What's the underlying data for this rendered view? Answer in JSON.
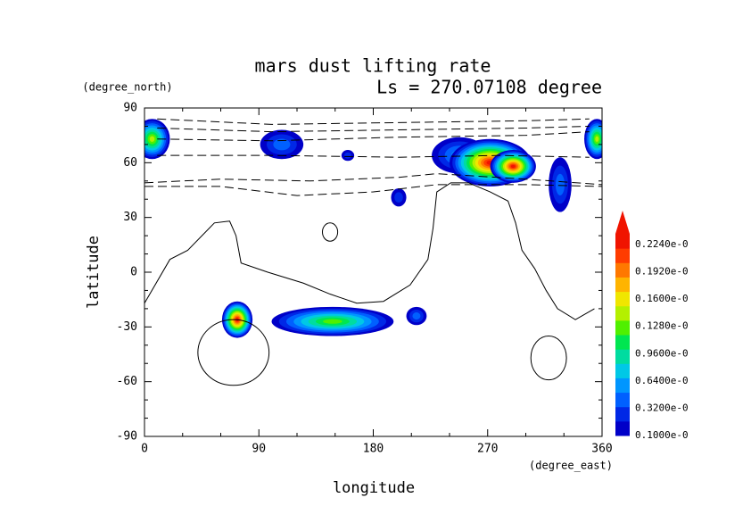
{
  "chart_data": {
    "type": "contour",
    "title": "mars dust lifting rate",
    "subtitle": "Ls = 270.07108 degree",
    "y_unit": "(degree_north)",
    "x_unit": "(degree_east)",
    "xlabel": "longitude",
    "ylabel": "latitude",
    "xlim": [
      0,
      360
    ],
    "ylim": [
      -90,
      90
    ],
    "xticks": [
      0,
      90,
      180,
      270,
      360
    ],
    "yticks": [
      -90,
      -60,
      -30,
      0,
      30,
      60,
      90
    ],
    "colorbar_labels": [
      "0.1000e-0",
      "0.3200e-0",
      "0.6400e-0",
      "0.9600e-0",
      "0.1280e-0",
      "0.1600e-0",
      "0.1920e-0",
      "0.2240e-0"
    ],
    "colors": [
      "#0000c8",
      "#0028e6",
      "#0060ff",
      "#0096ff",
      "#00c8e6",
      "#00dca0",
      "#00e650",
      "#50f000",
      "#b4f000",
      "#f0e600",
      "#ffb400",
      "#ff7800",
      "#ff3c00",
      "#f01400"
    ],
    "patches": [
      {
        "lon": 6,
        "lat": 73,
        "rlon": 14,
        "rlat": 11,
        "peak": 8
      },
      {
        "lon": 356,
        "lat": 73,
        "rlon": 10,
        "rlat": 11,
        "peak": 8
      },
      {
        "lon": 108,
        "lat": 70,
        "rlon": 17,
        "rlat": 8,
        "peak": 2
      },
      {
        "lon": 160,
        "lat": 64,
        "rlon": 5,
        "rlat": 3,
        "peak": 1
      },
      {
        "lon": 248,
        "lat": 64,
        "rlon": 22,
        "rlat": 10,
        "peak": 3
      },
      {
        "lon": 272,
        "lat": 60,
        "rlon": 32,
        "rlat": 13,
        "peak": 13
      },
      {
        "lon": 290,
        "lat": 58,
        "rlon": 18,
        "rlat": 9,
        "peak": 13
      },
      {
        "lon": 327,
        "lat": 48,
        "rlon": 9,
        "rlat": 15,
        "peak": 2
      },
      {
        "lon": 200,
        "lat": 41,
        "rlon": 6,
        "rlat": 5,
        "peak": 1
      },
      {
        "lon": 73,
        "lat": -26,
        "rlon": 12,
        "rlat": 10,
        "peak": 13
      },
      {
        "lon": 148,
        "lat": -27,
        "rlon": 48,
        "rlat": 8,
        "peak": 7
      },
      {
        "lon": 214,
        "lat": -24,
        "rlon": 8,
        "rlat": 5,
        "peak": 2
      }
    ],
    "contours": [
      {
        "dashed": true,
        "points": [
          [
            10,
            84
          ],
          [
            100,
            81
          ],
          [
            200,
            82
          ],
          [
            300,
            83
          ],
          [
            350,
            84
          ]
        ]
      },
      {
        "dashed": true,
        "points": [
          [
            10,
            79
          ],
          [
            100,
            77
          ],
          [
            200,
            78
          ],
          [
            300,
            79
          ],
          [
            350,
            80
          ]
        ]
      },
      {
        "dashed": true,
        "points": [
          [
            10,
            73
          ],
          [
            100,
            72
          ],
          [
            200,
            74
          ],
          [
            300,
            75
          ],
          [
            350,
            77
          ]
        ]
      },
      {
        "dashed": true,
        "points": [
          [
            10,
            64
          ],
          [
            100,
            64
          ],
          [
            200,
            63
          ],
          [
            280,
            64
          ],
          [
            350,
            63
          ]
        ]
      },
      {
        "dashed": true,
        "points": [
          [
            0,
            49
          ],
          [
            60,
            51
          ],
          [
            130,
            50
          ],
          [
            200,
            52
          ],
          [
            230,
            54
          ],
          [
            300,
            51
          ],
          [
            360,
            48
          ]
        ]
      },
      {
        "dashed": true,
        "points": [
          [
            0,
            47
          ],
          [
            60,
            47
          ],
          [
            120,
            42
          ],
          [
            180,
            44
          ],
          [
            230,
            48
          ],
          [
            300,
            48
          ],
          [
            360,
            47
          ]
        ]
      },
      {
        "dashed": false,
        "points": [
          [
            0,
            -17
          ],
          [
            20,
            7
          ],
          [
            34,
            12
          ],
          [
            55,
            27
          ],
          [
            67,
            28
          ],
          [
            72,
            20
          ],
          [
            76,
            5
          ],
          [
            97,
            0
          ],
          [
            125,
            -6
          ],
          [
            146,
            -12
          ],
          [
            167,
            -17
          ],
          [
            188,
            -16
          ],
          [
            209,
            -7
          ],
          [
            223,
            7
          ],
          [
            227,
            24
          ],
          [
            230,
            44
          ],
          [
            241,
            49
          ],
          [
            255,
            49
          ],
          [
            272,
            44
          ],
          [
            286,
            39
          ],
          [
            292,
            27
          ],
          [
            297,
            12
          ],
          [
            307,
            2
          ],
          [
            316,
            -10
          ],
          [
            325,
            -20
          ],
          [
            339,
            -26
          ],
          [
            354,
            -20
          ]
        ]
      }
    ],
    "closed_contours": [
      {
        "lon": 70,
        "lat": -44,
        "rlon": 28,
        "rlat": 18
      },
      {
        "lon": 146,
        "lat": 22,
        "rlon": 6,
        "rlat": 5
      },
      {
        "lon": 318,
        "lat": -47,
        "rlon": 14,
        "rlat": 12
      }
    ]
  }
}
